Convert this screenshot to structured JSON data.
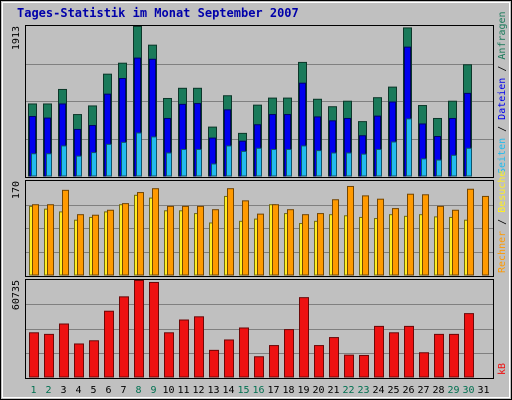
{
  "title": "Tages-Statistik im Monat September 2007",
  "colors": {
    "background": "#c0c0c0",
    "weekday_label": "#000000",
    "weekend_label": "#007050",
    "anfragen": "#1a7a5a",
    "dateien": "#0000ee",
    "seiten": "#22bbee",
    "besuche": "#ffee22",
    "rechner": "#ff9a00",
    "kb": "#ee1111",
    "title": "#0000aa"
  },
  "chart_data": [
    {
      "type": "bar",
      "name": "hits-panel",
      "ymax_label": "1913",
      "ylim": [
        0,
        1913
      ],
      "grid": true,
      "legend": "right",
      "categories": [
        "1",
        "2",
        "3",
        "4",
        "5",
        "6",
        "7",
        "8",
        "9",
        "10",
        "11",
        "12",
        "13",
        "14",
        "15",
        "16",
        "17",
        "18",
        "19",
        "20",
        "21",
        "22",
        "23",
        "24",
        "25",
        "26",
        "27",
        "28",
        "29",
        "30",
        "31"
      ],
      "series": [
        {
          "name": "Anfragen",
          "color": "#1a7a5a",
          "values": [
            925,
            925,
            1110,
            790,
            900,
            1305,
            1445,
            1913,
            1675,
            995,
            1125,
            1125,
            630,
            1030,
            550,
            910,
            1000,
            1000,
            1455,
            985,
            890,
            960,
            700,
            1005,
            1140,
            1895,
            905,
            740,
            960,
            1425,
            0
          ]
        },
        {
          "name": "Dateien",
          "color": "#0000ee",
          "values": [
            765,
            745,
            925,
            600,
            650,
            1050,
            1250,
            1510,
            1495,
            740,
            920,
            930,
            490,
            850,
            450,
            660,
            790,
            790,
            1190,
            760,
            710,
            740,
            520,
            770,
            950,
            1650,
            670,
            510,
            740,
            1060,
            0
          ]
        },
        {
          "name": "Seiten",
          "color": "#22bbee",
          "values": [
            290,
            290,
            390,
            260,
            305,
            410,
            435,
            555,
            505,
            300,
            345,
            345,
            160,
            390,
            320,
            360,
            345,
            345,
            390,
            330,
            300,
            300,
            285,
            345,
            440,
            735,
            225,
            210,
            270,
            360,
            0
          ]
        }
      ],
      "right_legend": [
        {
          "label": "Anfragen",
          "color": "#1a7a5a"
        },
        {
          "label": "Dateien",
          "color": "#0000ee"
        },
        {
          "label": "Seiten",
          "color": "#22bbee"
        }
      ]
    },
    {
      "type": "bar",
      "name": "visits-panel",
      "ymax_label": "170",
      "ylim": [
        0,
        170
      ],
      "grid": true,
      "legend": "right",
      "categories": [
        "1",
        "2",
        "3",
        "4",
        "5",
        "6",
        "7",
        "8",
        "9",
        "10",
        "11",
        "12",
        "13",
        "14",
        "15",
        "16",
        "17",
        "18",
        "19",
        "20",
        "21",
        "22",
        "23",
        "24",
        "25",
        "26",
        "27",
        "28",
        "29",
        "30",
        "31"
      ],
      "series": [
        {
          "name": "Besuche",
          "color": "#ffee22",
          "values": [
            125,
            120,
            115,
            100,
            105,
            115,
            128,
            145,
            140,
            117,
            117,
            112,
            95,
            143,
            98,
            102,
            128,
            112,
            94,
            98,
            110,
            108,
            105,
            103,
            110,
            107,
            110,
            106,
            105,
            100,
            0
          ]
        },
        {
          "name": "Rechner",
          "color": "#ff9a00",
          "values": [
            128,
            128,
            154,
            110,
            109,
            118,
            130,
            150,
            157,
            125,
            125,
            125,
            119,
            157,
            135,
            111,
            128,
            119,
            110,
            112,
            137,
            161,
            144,
            138,
            121,
            147,
            146,
            125,
            118,
            156,
            143
          ]
        }
      ],
      "right_legend": [
        {
          "label": "Besuche",
          "color": "#ffee22"
        },
        {
          "label": "Rechner",
          "color": "#ff9a00"
        }
      ]
    },
    {
      "type": "bar",
      "name": "kb-panel",
      "ymax_label": "60735",
      "ylim": [
        0,
        60735
      ],
      "grid": true,
      "legend": "right",
      "categories": [
        "1",
        "2",
        "3",
        "4",
        "5",
        "6",
        "7",
        "8",
        "9",
        "10",
        "11",
        "12",
        "13",
        "14",
        "15",
        "16",
        "17",
        "18",
        "19",
        "20",
        "21",
        "22",
        "23",
        "24",
        "25",
        "26",
        "27",
        "28",
        "29",
        "30",
        "31"
      ],
      "series": [
        {
          "name": "kB",
          "color": "#ee1111",
          "values": [
            28000,
            27000,
            33500,
            21000,
            23000,
            41500,
            50500,
            60735,
            59500,
            28000,
            36000,
            38000,
            17000,
            23500,
            31000,
            13000,
            20000,
            30000,
            50000,
            20000,
            25000,
            14000,
            13800,
            32000,
            28000,
            32000,
            15500,
            27000,
            27000,
            40000,
            0
          ]
        }
      ],
      "right_legend": [
        {
          "label": "kB",
          "color": "#ee1111"
        }
      ]
    }
  ]
}
